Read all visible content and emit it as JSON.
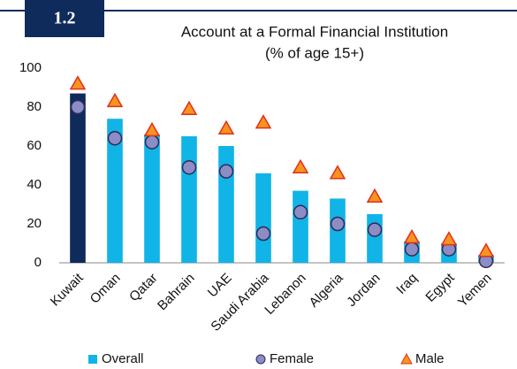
{
  "badge": "1.2",
  "chart_data": {
    "type": "bar",
    "title": "Account at a Formal Financial Institution",
    "subtitle": "(% of age 15+)",
    "categories": [
      "Kuwait",
      "Oman",
      "Qatar",
      "Bahrain",
      "UAE",
      "Saudi Arabia",
      "Lebanon",
      "Algeria",
      "Jordan",
      "Iraq",
      "Egypt",
      "Yemen"
    ],
    "series": [
      {
        "name": "Overall",
        "marker": "bar",
        "color": "#11b4e6",
        "colors": [
          "#0f2b5b",
          "#11b4e6",
          "#11b4e6",
          "#11b4e6",
          "#11b4e6",
          "#11b4e6",
          "#11b4e6",
          "#11b4e6",
          "#11b4e6",
          "#11b4e6",
          "#11b4e6",
          "#11b4e6"
        ],
        "values": [
          87,
          74,
          66,
          65,
          60,
          46,
          37,
          33,
          25,
          11,
          10,
          4
        ]
      },
      {
        "name": "Female",
        "marker": "circle",
        "color": "#8c8cc6",
        "values": [
          80,
          64,
          62,
          49,
          47,
          15,
          26,
          20,
          17,
          7,
          7,
          1
        ]
      },
      {
        "name": "Male",
        "marker": "triangle",
        "color": "#f7941d",
        "values": [
          92,
          83,
          68,
          79,
          69,
          72,
          49,
          46,
          34,
          13,
          12,
          6
        ]
      }
    ],
    "ylim": [
      0,
      100
    ],
    "yticks": [
      0,
      20,
      40,
      60,
      80,
      100
    ],
    "grid": false
  }
}
